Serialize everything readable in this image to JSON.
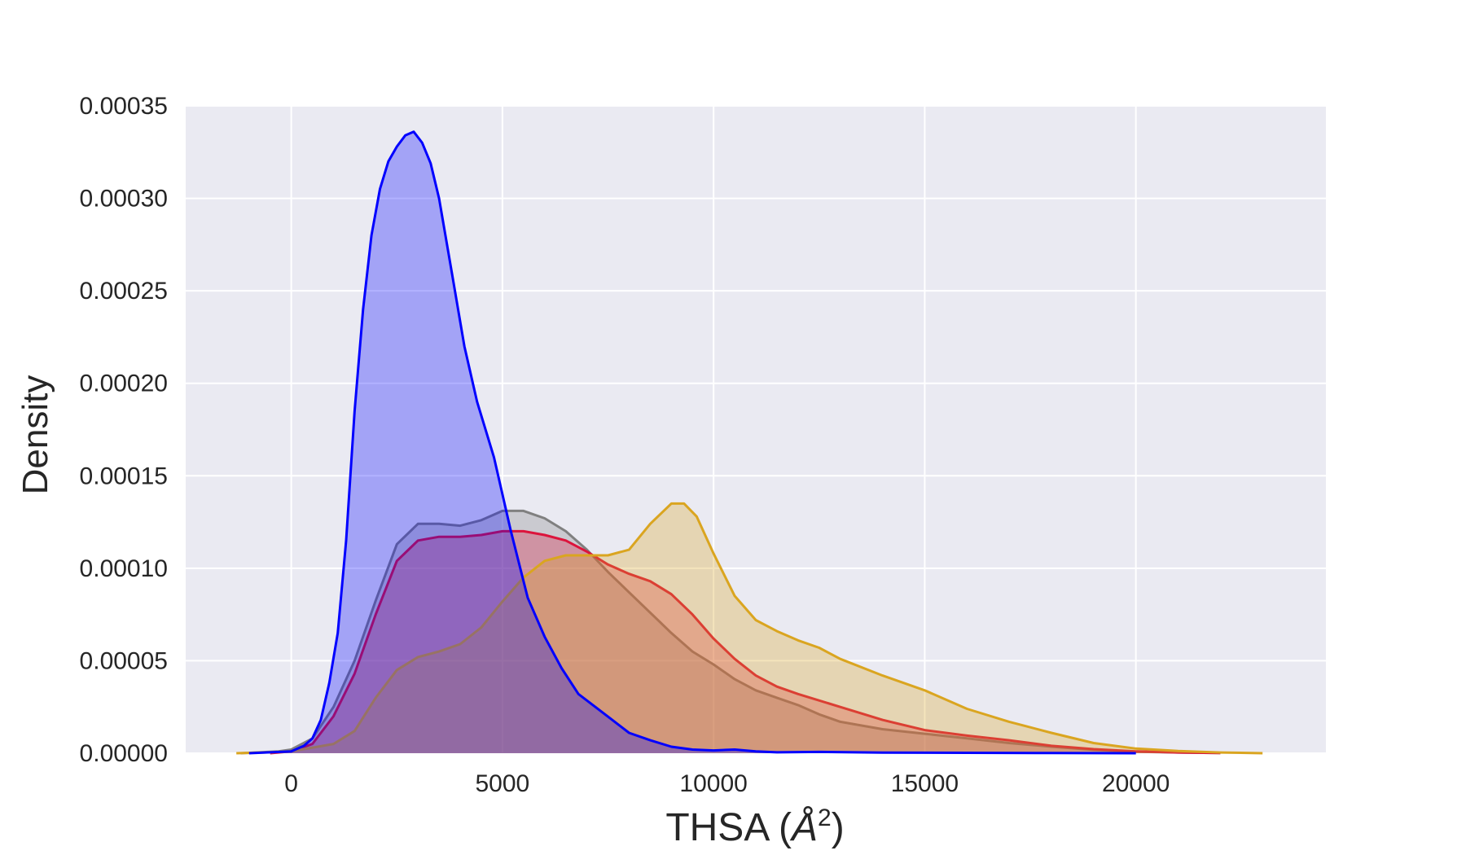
{
  "chart_data": {
    "type": "area",
    "title": "",
    "xlabel": "THSA (Å²)",
    "xlabel_parts": {
      "main": "THSA (",
      "symbol": "Å",
      "power": "2",
      "close": ")"
    },
    "ylabel": "Density",
    "xlim": [
      -2500,
      24500
    ],
    "ylim": [
      0,
      0.00035
    ],
    "x_ticks": [
      0,
      5000,
      10000,
      15000,
      20000
    ],
    "x_tick_labels": [
      "0",
      "5000",
      "10000",
      "15000",
      "20000"
    ],
    "y_ticks": [
      0,
      5e-05,
      0.0001,
      0.00015,
      0.0002,
      0.00025,
      0.0003,
      0.00035
    ],
    "y_tick_labels": [
      "0.00000",
      "0.00005",
      "0.00010",
      "0.00015",
      "0.00020",
      "0.00025",
      "0.00030",
      "0.00035"
    ],
    "grid": true,
    "background": "#eaeaf2",
    "grid_color": "#ffffff",
    "series": [
      {
        "color": "#808080",
        "fill": "#808080",
        "fill_opacity": 0.3,
        "points": [
          [
            -1200,
            0
          ],
          [
            -300,
            1e-06
          ],
          [
            0,
            2e-06
          ],
          [
            500,
            8e-06
          ],
          [
            1000,
            2.5e-05
          ],
          [
            1500,
            5e-05
          ],
          [
            2000,
            8.25e-05
          ],
          [
            2500,
            0.000113
          ],
          [
            3000,
            0.000124
          ],
          [
            3500,
            0.000124
          ],
          [
            4000,
            0.000123
          ],
          [
            4500,
            0.000126
          ],
          [
            5000,
            0.000131
          ],
          [
            5500,
            0.000131
          ],
          [
            6000,
            0.000127
          ],
          [
            6500,
            0.00012
          ],
          [
            7000,
            0.00011
          ],
          [
            7500,
            9.8e-05
          ],
          [
            8000,
            8.7e-05
          ],
          [
            8500,
            7.6e-05
          ],
          [
            9000,
            6.5e-05
          ],
          [
            9500,
            5.5e-05
          ],
          [
            10000,
            4.8e-05
          ],
          [
            10500,
            4e-05
          ],
          [
            11000,
            3.4e-05
          ],
          [
            11500,
            3e-05
          ],
          [
            12000,
            2.6e-05
          ],
          [
            12500,
            2.1e-05
          ],
          [
            13000,
            1.7e-05
          ],
          [
            14000,
            1.3e-05
          ],
          [
            15000,
            1.05e-05
          ],
          [
            16000,
            8e-06
          ],
          [
            17000,
            5.5e-06
          ],
          [
            18000,
            3.5e-06
          ],
          [
            19000,
            1.8e-06
          ],
          [
            20000,
            8e-07
          ],
          [
            21000,
            4e-07
          ],
          [
            22000,
            1e-07
          ]
        ]
      },
      {
        "color": "#dc143c",
        "fill": "#dc143c",
        "fill_opacity": 0.3,
        "points": [
          [
            -500,
            0
          ],
          [
            0,
            1e-06
          ],
          [
            500,
            5e-06
          ],
          [
            1000,
            2e-05
          ],
          [
            1500,
            4.3e-05
          ],
          [
            2000,
            7.5e-05
          ],
          [
            2500,
            0.000104
          ],
          [
            3000,
            0.000115
          ],
          [
            3500,
            0.000117
          ],
          [
            4000,
            0.000117
          ],
          [
            4500,
            0.000118
          ],
          [
            5000,
            0.00012
          ],
          [
            5500,
            0.00012
          ],
          [
            6000,
            0.000118
          ],
          [
            6500,
            0.000115
          ],
          [
            7000,
            0.000109
          ],
          [
            7500,
            0.000102
          ],
          [
            8000,
            9.7e-05
          ],
          [
            8500,
            9.3e-05
          ],
          [
            9000,
            8.6e-05
          ],
          [
            9500,
            7.5e-05
          ],
          [
            10000,
            6.2e-05
          ],
          [
            10500,
            5.1e-05
          ],
          [
            11000,
            4.2e-05
          ],
          [
            11500,
            3.6e-05
          ],
          [
            12000,
            3.2e-05
          ],
          [
            13000,
            2.5e-05
          ],
          [
            14000,
            1.8e-05
          ],
          [
            15000,
            1.25e-05
          ],
          [
            16000,
            9.5e-06
          ],
          [
            17000,
            7e-06
          ],
          [
            18000,
            4e-06
          ],
          [
            19000,
            2.2e-06
          ],
          [
            20000,
            1e-06
          ],
          [
            21000,
            4e-07
          ],
          [
            22000,
            1e-07
          ]
        ]
      },
      {
        "color": "#daa520",
        "fill": "#daa520",
        "fill_opacity": 0.3,
        "points": [
          [
            -1300,
            0
          ],
          [
            -500,
            5e-07
          ],
          [
            0,
            1e-06
          ],
          [
            1000,
            5e-06
          ],
          [
            1500,
            1.2e-05
          ],
          [
            2000,
            3e-05
          ],
          [
            2500,
            4.5e-05
          ],
          [
            3000,
            5.2e-05
          ],
          [
            3500,
            5.5e-05
          ],
          [
            4000,
            5.9e-05
          ],
          [
            4500,
            6.8e-05
          ],
          [
            5000,
            8.2e-05
          ],
          [
            5500,
            9.5e-05
          ],
          [
            6000,
            0.000104
          ],
          [
            6500,
            0.000107
          ],
          [
            7000,
            0.000107
          ],
          [
            7500,
            0.000107
          ],
          [
            8000,
            0.00011
          ],
          [
            8500,
            0.000124
          ],
          [
            9000,
            0.000135
          ],
          [
            9300,
            0.000135
          ],
          [
            9600,
            0.000128
          ],
          [
            10000,
            0.000108
          ],
          [
            10500,
            8.5e-05
          ],
          [
            11000,
            7.2e-05
          ],
          [
            11500,
            6.6e-05
          ],
          [
            12000,
            6.1e-05
          ],
          [
            12500,
            5.7e-05
          ],
          [
            13000,
            5.1e-05
          ],
          [
            14000,
            4.2e-05
          ],
          [
            15000,
            3.4e-05
          ],
          [
            16000,
            2.4e-05
          ],
          [
            17000,
            1.7e-05
          ],
          [
            18000,
            1.1e-05
          ],
          [
            19000,
            5.5e-06
          ],
          [
            20000,
            2.5e-06
          ],
          [
            21000,
            1.2e-06
          ],
          [
            22000,
            4e-07
          ],
          [
            23000,
            0
          ]
        ]
      },
      {
        "color": "#0000ff",
        "fill": "#0000ff",
        "fill_opacity": 0.3,
        "points": [
          [
            -1000,
            0
          ],
          [
            0,
            1e-06
          ],
          [
            300,
            4e-06
          ],
          [
            500,
            8e-06
          ],
          [
            700,
            1.8e-05
          ],
          [
            900,
            3.8e-05
          ],
          [
            1100,
            6.5e-05
          ],
          [
            1300,
            0.000115
          ],
          [
            1500,
            0.000185
          ],
          [
            1700,
            0.00024
          ],
          [
            1900,
            0.00028
          ],
          [
            2100,
            0.000305
          ],
          [
            2300,
            0.00032
          ],
          [
            2500,
            0.000328
          ],
          [
            2700,
            0.000334
          ],
          [
            2900,
            0.000336
          ],
          [
            3100,
            0.00033
          ],
          [
            3300,
            0.000319
          ],
          [
            3500,
            0.0003
          ],
          [
            3800,
            0.00026
          ],
          [
            4100,
            0.00022
          ],
          [
            4400,
            0.00019
          ],
          [
            4800,
            0.00016
          ],
          [
            5200,
            0.00012
          ],
          [
            5600,
            8.4e-05
          ],
          [
            6000,
            6.3e-05
          ],
          [
            6400,
            4.6e-05
          ],
          [
            6800,
            3.2e-05
          ],
          [
            7200,
            2.5e-05
          ],
          [
            7600,
            1.8e-05
          ],
          [
            8000,
            1.1e-05
          ],
          [
            8500,
            7e-06
          ],
          [
            9000,
            3.5e-06
          ],
          [
            9500,
            2e-06
          ],
          [
            10000,
            1.5e-06
          ],
          [
            10500,
            2e-06
          ],
          [
            11000,
            1e-06
          ],
          [
            11500,
            5e-07
          ],
          [
            12500,
            7e-07
          ],
          [
            14000,
            3e-07
          ],
          [
            16000,
            2e-07
          ],
          [
            18000,
            1e-07
          ],
          [
            20000,
            0
          ]
        ]
      }
    ]
  }
}
